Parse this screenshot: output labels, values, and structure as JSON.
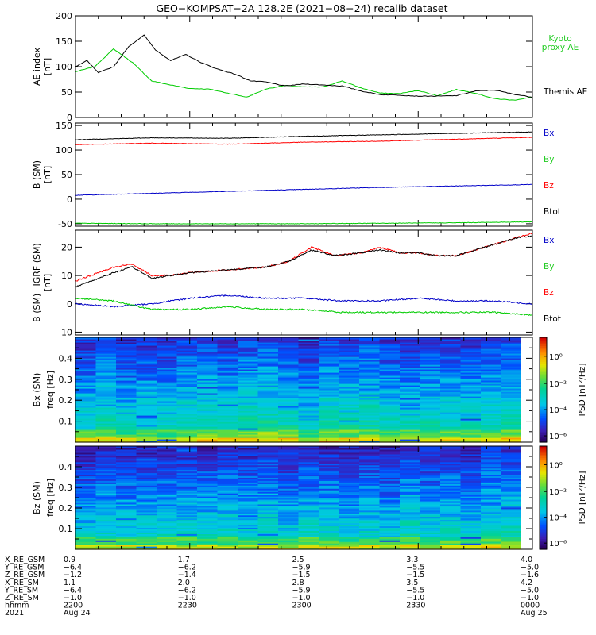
{
  "title": "GEO−KOMPSAT−2A 128.2E (2021−08−24) recalib dataset",
  "colors": {
    "black": "#000000",
    "red": "#ff0000",
    "blue": "#0000c8",
    "green": "#00cc00",
    "legend_green": "#22cc22"
  },
  "chart_data": [
    {
      "type": "line",
      "panel": "ae",
      "ylabel_lines": [
        "AE index",
        "[nT]"
      ],
      "ylim": [
        0,
        200
      ],
      "yticks": [
        0,
        50,
        100,
        150,
        200
      ],
      "x_start": "2021-08-24 22:00",
      "x_end": "2021-08-25 00:00",
      "series": [
        {
          "name": "Kyoto proxy AE",
          "color": "green",
          "label_lines": [
            "Kyoto",
            "proxy AE"
          ],
          "x": [
            0,
            5,
            10,
            15,
            20,
            25,
            30,
            35,
            40,
            45,
            50,
            55,
            60,
            65,
            70,
            75,
            80,
            85,
            90,
            95,
            100,
            105,
            110,
            115,
            120
          ],
          "y": [
            90,
            100,
            135,
            108,
            72,
            64,
            57,
            56,
            48,
            40,
            56,
            63,
            60,
            60,
            72,
            58,
            48,
            47,
            53,
            43,
            55,
            48,
            37,
            34,
            40
          ]
        },
        {
          "name": "Themis AE",
          "color": "black",
          "label_lines": [
            "Themis AE"
          ],
          "x": [
            0,
            3,
            6,
            10,
            14,
            18,
            21,
            25,
            29,
            33,
            37,
            42,
            46,
            50,
            55,
            60,
            65,
            70,
            75,
            80,
            85,
            90,
            95,
            100,
            105,
            110,
            115,
            120
          ],
          "y": [
            100,
            112,
            88,
            100,
            140,
            162,
            133,
            112,
            124,
            108,
            96,
            85,
            72,
            70,
            62,
            66,
            64,
            62,
            52,
            45,
            44,
            42,
            42,
            43,
            52,
            54,
            46,
            40
          ]
        }
      ]
    },
    {
      "type": "line",
      "panel": "bsm",
      "ylabel_lines": [
        "B (SM)",
        "[nT]"
      ],
      "ylim": [
        -55,
        155
      ],
      "yticks": [
        -50,
        0,
        50,
        100,
        150
      ],
      "series": [
        {
          "name": "Bx",
          "color": "blue",
          "x": [
            0,
            20,
            40,
            60,
            80,
            100,
            120
          ],
          "y": [
            8,
            12,
            16,
            20,
            24,
            27,
            30
          ]
        },
        {
          "name": "By",
          "color": "green",
          "x": [
            0,
            20,
            40,
            60,
            80,
            100,
            120
          ],
          "y": [
            -49,
            -50,
            -50,
            -50,
            -49,
            -48,
            -46
          ]
        },
        {
          "name": "Bz",
          "color": "red",
          "x": [
            0,
            20,
            40,
            60,
            80,
            100,
            120
          ],
          "y": [
            111,
            114,
            112,
            116,
            118,
            122,
            126
          ]
        },
        {
          "name": "Btot",
          "color": "black",
          "x": [
            0,
            20,
            40,
            60,
            80,
            100,
            120
          ],
          "y": [
            121,
            125,
            124,
            128,
            131,
            134,
            137
          ]
        }
      ]
    },
    {
      "type": "line",
      "panel": "bres",
      "ylabel_lines": [
        "B (SM)−IGRF (SM)",
        "[nT]"
      ],
      "ylim": [
        -11,
        26
      ],
      "yticks": [
        -10,
        0,
        10,
        20
      ],
      "series": [
        {
          "name": "Bx",
          "color": "blue",
          "x": [
            0,
            10,
            20,
            30,
            40,
            50,
            60,
            70,
            80,
            90,
            100,
            110,
            120
          ],
          "y": [
            0,
            -1,
            0,
            2,
            3,
            2,
            2,
            1,
            1,
            2,
            1,
            1,
            0
          ]
        },
        {
          "name": "By",
          "color": "green",
          "x": [
            0,
            10,
            20,
            30,
            40,
            50,
            60,
            70,
            80,
            90,
            100,
            110,
            120
          ],
          "y": [
            2,
            1,
            -2,
            -2,
            -1,
            -2,
            -2,
            -3,
            -3,
            -3,
            -3,
            -3,
            -4
          ]
        },
        {
          "name": "Bz",
          "color": "red",
          "x": [
            0,
            10,
            15,
            20,
            25,
            30,
            40,
            50,
            56,
            62,
            68,
            75,
            80,
            85,
            90,
            95,
            100,
            105,
            110,
            115,
            120
          ],
          "y": [
            8,
            13,
            14,
            10,
            10,
            11,
            12,
            13,
            15,
            20,
            17,
            18,
            20,
            18,
            18,
            17,
            17,
            19,
            21,
            23,
            25
          ]
        },
        {
          "name": "Btot",
          "color": "black",
          "x": [
            0,
            10,
            15,
            20,
            25,
            30,
            40,
            50,
            56,
            62,
            68,
            75,
            80,
            85,
            90,
            95,
            100,
            105,
            110,
            115,
            120
          ],
          "y": [
            6,
            11,
            13,
            9,
            10,
            11,
            12,
            13,
            15,
            19,
            17,
            18,
            19,
            18,
            18,
            17,
            17,
            19,
            21,
            23,
            24
          ]
        }
      ]
    },
    {
      "type": "heatmap",
      "panel": "specx",
      "ylabel_lines": [
        "Bx (SM)",
        "freq [Hz]"
      ],
      "ylim": [
        0,
        0.5
      ],
      "yticks": [
        0.1,
        0.2,
        0.3,
        0.4
      ],
      "colorbar_label": "PSD [nT²/Hz]",
      "colorbar_ticks": [
        "10⁰",
        "10⁻²",
        "10⁻⁴",
        "10⁻⁶"
      ]
    },
    {
      "type": "heatmap",
      "panel": "specz",
      "ylabel_lines": [
        "Bz (SM)",
        "freq [Hz]"
      ],
      "ylim": [
        0,
        0.5
      ],
      "yticks": [
        0.1,
        0.2,
        0.3,
        0.4
      ],
      "colorbar_label": "PSD [nT²/Hz]",
      "colorbar_ticks": [
        "10⁰",
        "10⁻²",
        "10⁻⁴",
        "10⁻⁶"
      ]
    }
  ],
  "orbit_table": {
    "row_labels": [
      "X_RE_GSM",
      "Y_RE_GSM",
      "Z_RE_GSM",
      "X_RE_SM",
      "Y_RE_SM",
      "Z_RE_SM",
      "hhmm",
      "2021"
    ],
    "columns": [
      {
        "values": [
          "0.9",
          "−6.4",
          "−1.2",
          "1.1",
          "−6.4",
          "−1.0",
          "2200",
          "Aug 24"
        ]
      },
      {
        "values": [
          "1.7",
          "−6.2",
          "−1.4",
          "2.0",
          "−6.2",
          "−1.0",
          "2230",
          ""
        ]
      },
      {
        "values": [
          "2.5",
          "−5.9",
          "−1.5",
          "2.8",
          "−5.9",
          "−1.0",
          "2300",
          ""
        ]
      },
      {
        "values": [
          "3.3",
          "−5.5",
          "−1.5",
          "3.5",
          "−5.5",
          "−1.0",
          "2330",
          ""
        ]
      },
      {
        "values": [
          "4.0",
          "−5.0",
          "−1.6",
          "4.2",
          "−5.0",
          "−1.0",
          "0000",
          "Aug 25"
        ]
      }
    ]
  }
}
